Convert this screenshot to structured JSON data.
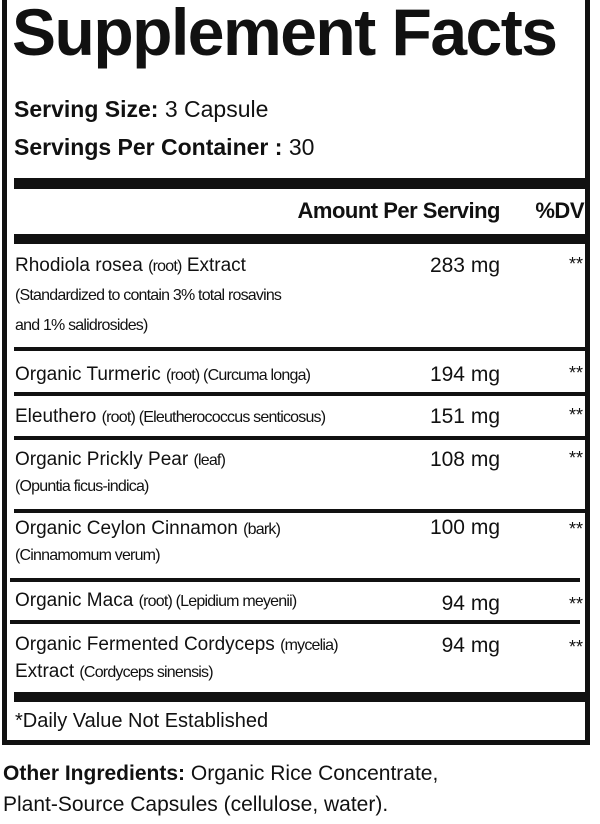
{
  "title": "Supplement Facts",
  "serving_size": {
    "label": "Serving Size:",
    "value": "3 Capsule"
  },
  "servings_per_container": {
    "label": "Servings Per Container :",
    "value": "30"
  },
  "header": {
    "amount": "Amount Per Serving",
    "dv": "%DV"
  },
  "ingredients": [
    {
      "name": "Rhodiola rosea",
      "part": "(root)",
      "suffix": "Extract",
      "detail1": "(Standardized to contain 3% total rosavins",
      "detail2": "and 1% salidrosides)",
      "amount": "283 mg",
      "dv": "**"
    },
    {
      "name": "Organic Turmeric",
      "part": "(root) (Curcuma longa)",
      "amount": "194 mg",
      "dv": "**"
    },
    {
      "name": "Eleuthero",
      "part": "(root) (Eleutherococcus senticosus)",
      "amount": "151 mg",
      "dv": "**"
    },
    {
      "name": "Organic Prickly Pear",
      "part": "(leaf)",
      "detail1": "(Opuntia ficus-indica)",
      "amount": "108 mg",
      "dv": "**"
    },
    {
      "name": "Organic Ceylon Cinnamon",
      "part": "(bark)",
      "detail1": "(Cinnamomum verum)",
      "amount": "100 mg",
      "dv": "**"
    },
    {
      "name": "Organic Maca",
      "part": "(root) (Lepidium meyenii)",
      "amount": "94 mg",
      "dv": "**"
    },
    {
      "name": "Organic Fermented Cordyceps",
      "part": "(mycelia)",
      "line2": "Extract",
      "detail1": "(Cordyceps sinensis)",
      "amount": "94 mg",
      "dv": "**"
    }
  ],
  "footnote": "*Daily Value Not Established",
  "other_ingredients": {
    "label": "Other Ingredients:",
    "line1": "Organic Rice Concentrate,",
    "line2": "Plant-Source Capsules (cellulose, water)."
  }
}
